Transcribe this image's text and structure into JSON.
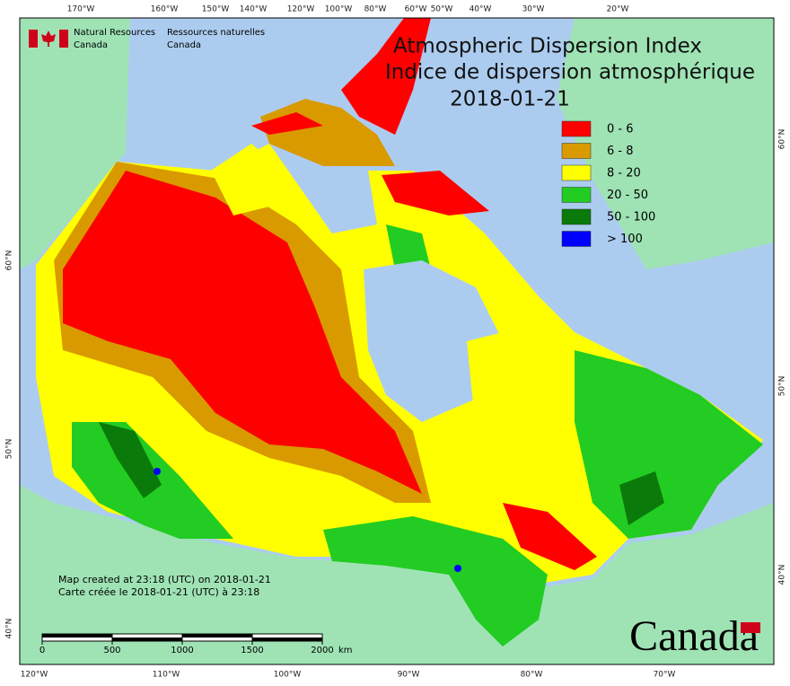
{
  "header": {
    "agency_en": [
      "Natural Resources",
      "Canada"
    ],
    "agency_fr": [
      "Ressources naturelles",
      "Canada"
    ]
  },
  "title": {
    "en": "Atmospheric Dispersion Index",
    "fr": "Indice de dispersion atmosphérique",
    "date": "2018-01-21"
  },
  "legend": [
    {
      "label": "0 - 6",
      "color": "#ff0000"
    },
    {
      "label": "6 - 8",
      "color": "#d99a00"
    },
    {
      "label": "8 - 20",
      "color": "#ffff00"
    },
    {
      "label": "20 - 50",
      "color": "#22cc22"
    },
    {
      "label": "50 - 100",
      "color": "#0a7a0a"
    },
    {
      "label": "> 100",
      "color": "#0000ff"
    }
  ],
  "graticule": {
    "top": [
      "170°W",
      "160°W",
      "150°W",
      "140°W",
      "120°W",
      "100°W",
      "80°W",
      "60°W",
      "50°W",
      "40°W",
      "30°W",
      "20°W"
    ],
    "bottom": [
      "120°W",
      "110°W",
      "100°W",
      "90°W",
      "80°W",
      "70°W"
    ],
    "left": [
      "60°N",
      "50°N",
      "40°N"
    ],
    "right": [
      "60°N",
      "50°N",
      "40°N"
    ]
  },
  "note": [
    "Map created at 23:18 (UTC) on 2018-01-21",
    "Carte créée le 2018-01-21 (UTC) à 23:18"
  ],
  "scale_bar": {
    "ticks": [
      0,
      500,
      1000,
      1500,
      2000
    ],
    "unit": "km"
  },
  "wordmark": "Canada"
}
